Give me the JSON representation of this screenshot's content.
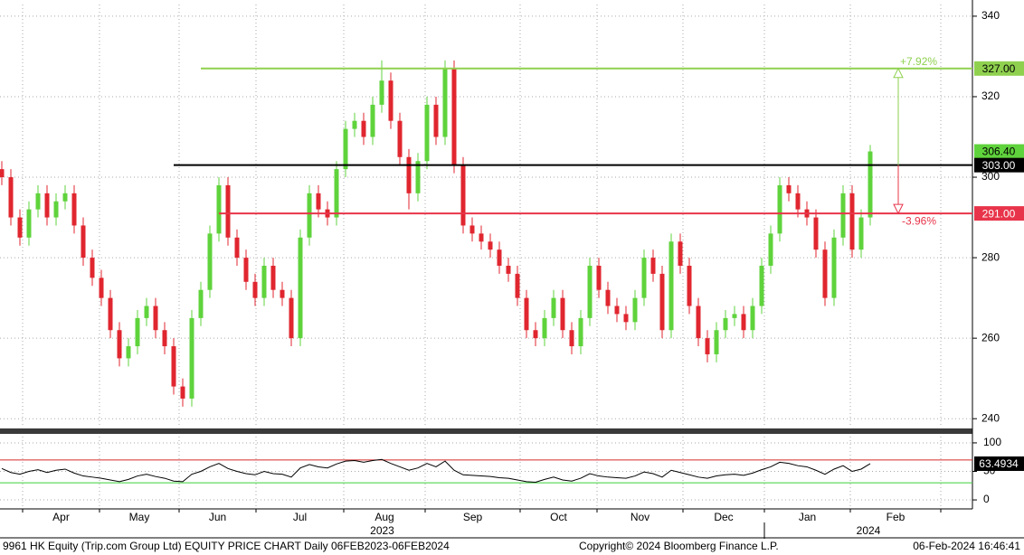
{
  "chart_data": {
    "type": "candlestick",
    "ylim": [
      237.8,
      342.9
    ],
    "yticks": [
      240,
      260,
      280,
      300,
      320,
      340
    ],
    "grid": true,
    "up_color": "#5fd33c",
    "down_color": "#e0262f",
    "candles": [
      [
        302,
        304,
        298,
        300
      ],
      [
        300,
        302,
        288,
        290
      ],
      [
        290,
        292,
        283,
        285
      ],
      [
        285,
        294,
        283,
        292
      ],
      [
        292,
        298,
        290,
        296
      ],
      [
        296,
        298,
        288,
        290
      ],
      [
        290,
        296,
        288,
        294
      ],
      [
        294,
        298,
        292,
        296
      ],
      [
        296,
        298,
        286,
        288
      ],
      [
        288,
        290,
        278,
        280
      ],
      [
        280,
        282,
        273,
        275
      ],
      [
        275,
        277,
        268,
        270
      ],
      [
        270,
        272,
        260,
        262
      ],
      [
        262,
        264,
        253,
        255
      ],
      [
        255,
        260,
        253,
        258
      ],
      [
        258,
        267,
        256,
        265
      ],
      [
        265,
        270,
        263,
        268
      ],
      [
        268,
        270,
        260,
        262
      ],
      [
        262,
        264,
        256,
        258
      ],
      [
        258,
        260,
        246,
        248
      ],
      [
        248,
        250,
        243,
        245
      ],
      [
        245,
        267,
        243,
        265
      ],
      [
        265,
        274,
        263,
        272
      ],
      [
        272,
        288,
        270,
        286
      ],
      [
        286,
        300,
        284,
        298
      ],
      [
        298,
        300,
        283,
        285
      ],
      [
        285,
        287,
        278,
        280
      ],
      [
        280,
        282,
        272,
        274
      ],
      [
        274,
        276,
        268,
        270
      ],
      [
        270,
        280,
        268,
        278
      ],
      [
        278,
        280,
        270,
        272
      ],
      [
        272,
        274,
        268,
        270
      ],
      [
        270,
        272,
        258,
        260
      ],
      [
        260,
        287,
        258,
        285
      ],
      [
        285,
        298,
        283,
        296
      ],
      [
        296,
        298,
        290,
        292
      ],
      [
        292,
        294,
        288,
        290
      ],
      [
        290,
        304,
        288,
        302
      ],
      [
        302,
        314,
        300,
        312
      ],
      [
        312,
        316,
        310,
        314
      ],
      [
        314,
        316,
        308,
        310
      ],
      [
        310,
        320,
        308,
        318
      ],
      [
        318,
        329,
        316,
        324
      ],
      [
        324,
        326,
        312,
        314
      ],
      [
        314,
        316,
        303,
        305
      ],
      [
        305,
        307,
        292,
        296
      ],
      [
        296,
        306,
        294,
        304
      ],
      [
        304,
        320,
        302,
        318
      ],
      [
        318,
        320,
        308,
        310
      ],
      [
        310,
        329,
        308,
        327
      ],
      [
        327,
        329,
        301,
        303
      ],
      [
        303,
        305,
        286,
        288
      ],
      [
        288,
        290,
        284,
        286
      ],
      [
        286,
        288,
        282,
        284
      ],
      [
        284,
        286,
        280,
        282
      ],
      [
        282,
        284,
        276,
        278
      ],
      [
        278,
        280,
        274,
        276
      ],
      [
        276,
        278,
        268,
        270
      ],
      [
        270,
        272,
        260,
        262
      ],
      [
        262,
        264,
        258,
        260
      ],
      [
        260,
        267,
        258,
        265
      ],
      [
        265,
        272,
        263,
        270
      ],
      [
        270,
        272,
        260,
        262
      ],
      [
        262,
        264,
        256,
        258
      ],
      [
        258,
        267,
        256,
        265
      ],
      [
        265,
        280,
        263,
        278
      ],
      [
        278,
        280,
        270,
        272
      ],
      [
        272,
        274,
        266,
        268
      ],
      [
        268,
        270,
        264,
        266
      ],
      [
        266,
        268,
        262,
        264
      ],
      [
        264,
        272,
        262,
        270
      ],
      [
        270,
        282,
        268,
        280
      ],
      [
        280,
        282,
        274,
        276
      ],
      [
        276,
        278,
        260,
        262
      ],
      [
        262,
        286,
        260,
        284
      ],
      [
        284,
        286,
        276,
        278
      ],
      [
        278,
        280,
        266,
        268
      ],
      [
        268,
        270,
        258,
        260
      ],
      [
        260,
        262,
        254,
        256
      ],
      [
        256,
        264,
        254,
        262
      ],
      [
        262,
        267,
        260,
        265
      ],
      [
        265,
        268,
        263,
        266
      ],
      [
        266,
        268,
        260,
        262
      ],
      [
        262,
        270,
        260,
        268
      ],
      [
        268,
        280,
        266,
        278
      ],
      [
        278,
        288,
        276,
        286
      ],
      [
        286,
        300,
        284,
        298
      ],
      [
        298,
        300,
        294,
        296
      ],
      [
        296,
        298,
        290,
        292
      ],
      [
        292,
        294,
        288,
        290
      ],
      [
        290,
        292,
        280,
        282
      ],
      [
        282,
        284,
        268,
        270
      ],
      [
        270,
        287,
        268,
        285
      ],
      [
        285,
        298,
        283,
        296
      ],
      [
        296,
        298,
        280,
        282
      ],
      [
        282,
        292,
        280,
        290
      ],
      [
        290,
        308,
        288,
        306.4
      ]
    ],
    "last_label": "306.40",
    "levels": [
      {
        "value": 327,
        "label": "327.00",
        "color": "#8fd14f",
        "start": 22
      },
      {
        "value": 303,
        "label": "303.00",
        "color": "#000000",
        "start": 19
      },
      {
        "value": 291,
        "label": "291.00",
        "color": "#e8344a",
        "start": 24
      }
    ],
    "changes": [
      {
        "label": "+7.92%",
        "color": "#8fd14f"
      },
      {
        "label": "-3.96%",
        "color": "#e8344a"
      }
    ],
    "months": [
      "Apr",
      "May",
      "Jun",
      "Jul",
      "Aug",
      "Sep",
      "Oct",
      "Nov",
      "Dec",
      "Jan",
      "Feb"
    ],
    "month_starts": [
      2.3,
      10.8,
      19.6,
      28.1,
      37.8,
      46.8,
      57.3,
      65.8,
      75.3,
      84.3,
      93.8,
      103.8
    ],
    "years": [
      "2023",
      "2024"
    ],
    "rsi": {
      "ylim": [
        -11,
        111
      ],
      "yticks": [
        0,
        50,
        100
      ],
      "levels": [
        30,
        70
      ],
      "values": [
        55,
        48,
        45,
        50,
        53,
        48,
        52,
        54,
        47,
        42,
        40,
        38,
        35,
        32,
        36,
        42,
        45,
        41,
        38,
        33,
        32,
        45,
        50,
        58,
        64,
        55,
        50,
        46,
        44,
        50,
        46,
        45,
        40,
        56,
        62,
        58,
        56,
        63,
        68,
        69,
        66,
        69,
        71,
        64,
        58,
        52,
        56,
        64,
        58,
        68,
        52,
        44,
        43,
        42,
        41,
        39,
        38,
        35,
        32,
        31,
        36,
        40,
        35,
        33,
        38,
        46,
        42,
        40,
        39,
        38,
        42,
        49,
        46,
        40,
        52,
        48,
        44,
        40,
        38,
        42,
        44,
        45,
        43,
        47,
        53,
        58,
        66,
        64,
        60,
        58,
        52,
        45,
        54,
        60,
        50,
        54,
        63.4934
      ]
    },
    "footer": {
      "left": "9961 HK Equity (Trip.com Group Ltd) EQUITY PRICE CHART  Daily 06FEB2023-06FEB2024",
      "center": "Copyright© 2024 Bloomberg Finance L.P.",
      "right": "06-Feb-2024 16:46:41"
    }
  }
}
